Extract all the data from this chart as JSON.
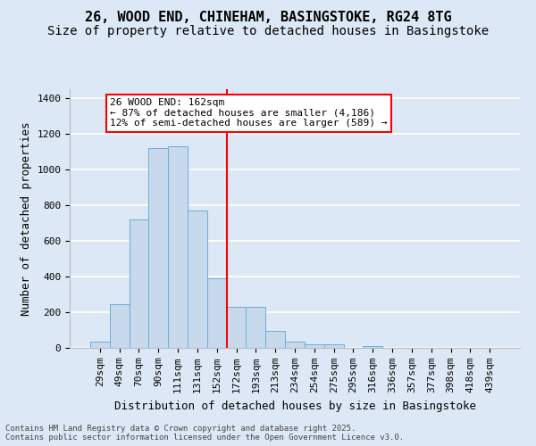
{
  "title1": "26, WOOD END, CHINEHAM, BASINGSTOKE, RG24 8TG",
  "title2": "Size of property relative to detached houses in Basingstoke",
  "xlabel": "Distribution of detached houses by size in Basingstoke",
  "ylabel": "Number of detached properties",
  "bar_color": "#c8d9ee",
  "bar_edge_color": "#6aaed6",
  "background_color": "#dce8f5",
  "grid_color": "#ffffff",
  "categories": [
    "29sqm",
    "49sqm",
    "70sqm",
    "90sqm",
    "111sqm",
    "131sqm",
    "152sqm",
    "172sqm",
    "193sqm",
    "213sqm",
    "234sqm",
    "254sqm",
    "275sqm",
    "295sqm",
    "316sqm",
    "336sqm",
    "357sqm",
    "377sqm",
    "398sqm",
    "418sqm",
    "439sqm"
  ],
  "values": [
    35,
    245,
    720,
    1120,
    1130,
    770,
    390,
    230,
    230,
    95,
    35,
    22,
    18,
    0,
    10,
    0,
    0,
    0,
    0,
    0,
    0
  ],
  "ylim": [
    0,
    1450
  ],
  "yticks": [
    0,
    200,
    400,
    600,
    800,
    1000,
    1200,
    1400
  ],
  "vline_x": 6.5,
  "annotation_box_text": "26 WOOD END: 162sqm\n← 87% of detached houses are smaller (4,186)\n12% of semi-detached houses are larger (589) →",
  "footnote1": "Contains HM Land Registry data © Crown copyright and database right 2025.",
  "footnote2": "Contains public sector information licensed under the Open Government Licence v3.0.",
  "title_fontsize": 11,
  "subtitle_fontsize": 10,
  "axis_label_fontsize": 9,
  "tick_fontsize": 8,
  "annot_fontsize": 8
}
